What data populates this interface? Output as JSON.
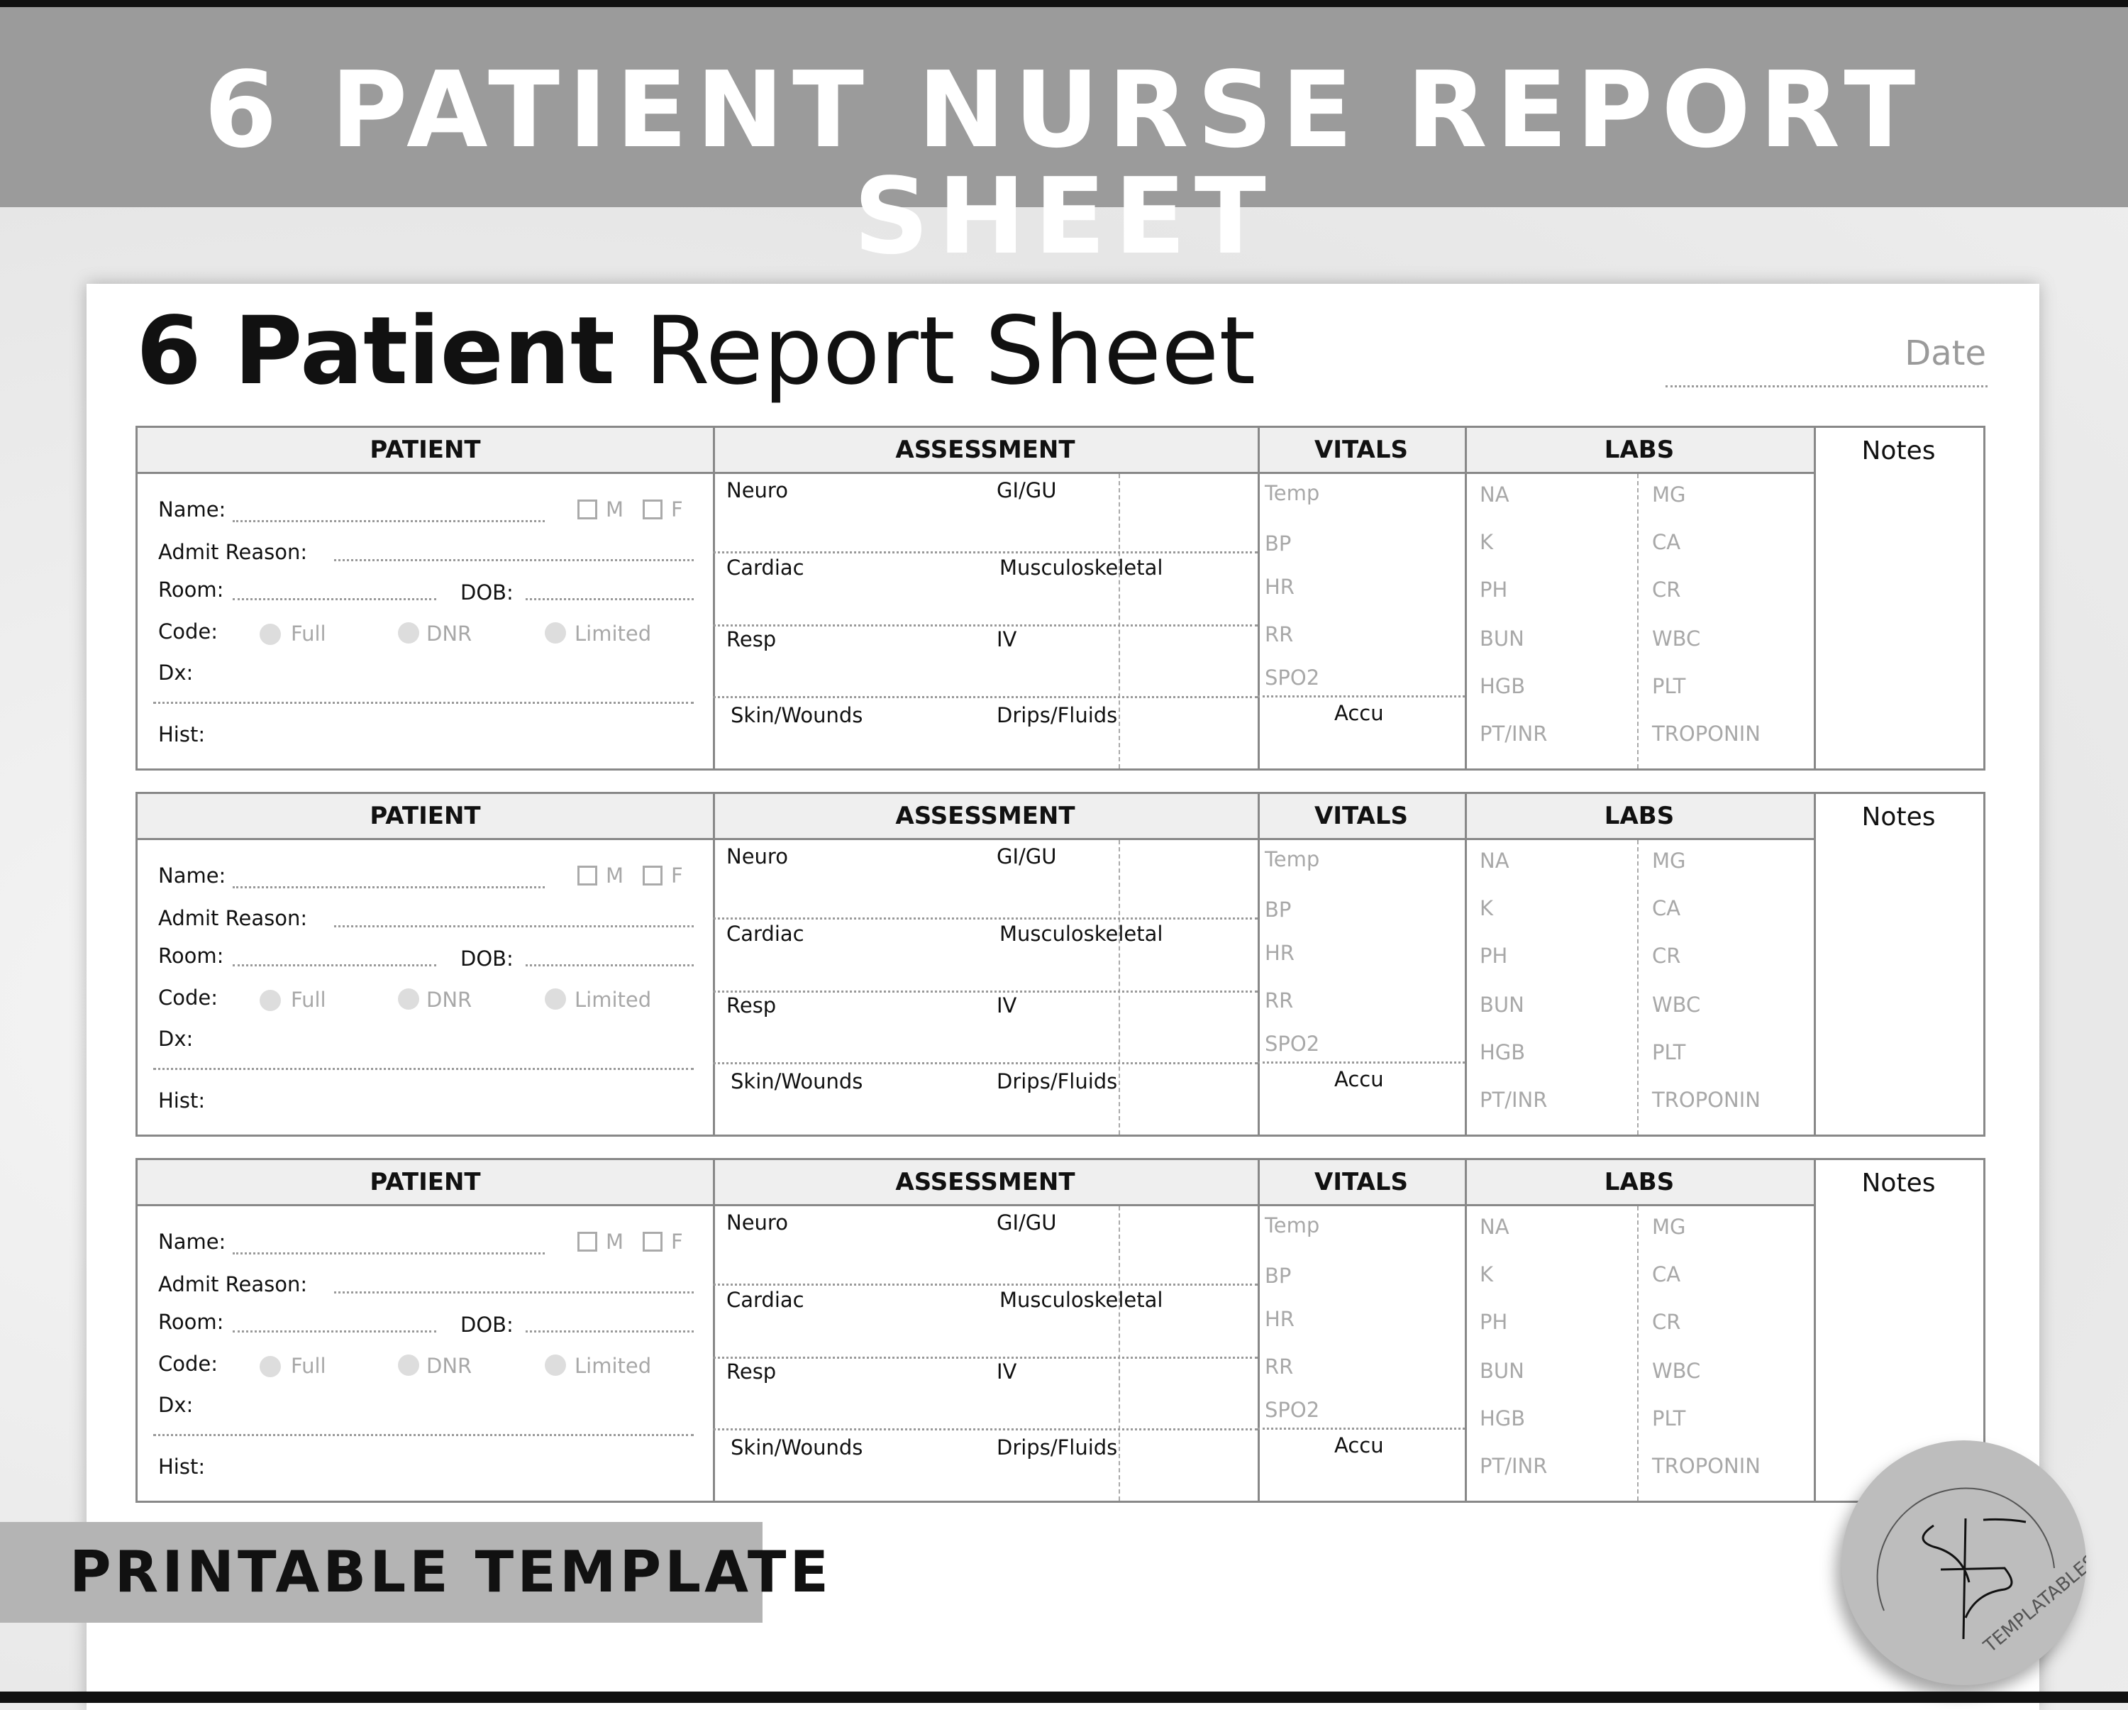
{
  "banner": {
    "title": "6 PATIENT NURSE REPORT SHEET"
  },
  "sheet": {
    "title_bold": "6 Patient",
    "title_rest": "Report Sheet",
    "date_label": "Date"
  },
  "headers": {
    "patient": "PATIENT",
    "assessment": "ASSESSMENT",
    "vitals": "VITALS",
    "labs": "LABS",
    "notes": "Notes"
  },
  "patient_fields": {
    "name": "Name:",
    "sex_m": "M",
    "sex_f": "F",
    "admit": "Admit Reason:",
    "room": "Room:",
    "dob": "DOB:",
    "code": "Code:",
    "code_full": "Full",
    "code_dnr": "DNR",
    "code_limited": "Limited",
    "dx": "Dx:",
    "hist": "Hist:"
  },
  "assessment": {
    "neuro": "Neuro",
    "gigu": "GI/GU",
    "cardiac": "Cardiac",
    "musculo": "Musculoskeletal",
    "resp": "Resp",
    "iv": "IV",
    "skin": "Skin/Wounds",
    "drips": "Drips/Fluids"
  },
  "vitals": {
    "items": [
      "Temp",
      "BP",
      "HR",
      "RR",
      "SPO2"
    ],
    "accu": "Accu"
  },
  "labs": {
    "left": [
      "NA",
      "K",
      "PH",
      "BUN",
      "HGB",
      "PT/INR"
    ],
    "right": [
      "MG",
      "CA",
      "CR",
      "WBC",
      "PLT",
      "TROPONIN"
    ]
  },
  "patient_blocks": 3,
  "footer_banner": "PRINTABLE TEMPLATE",
  "badge": {
    "brand": "TEMPLATABLES"
  }
}
